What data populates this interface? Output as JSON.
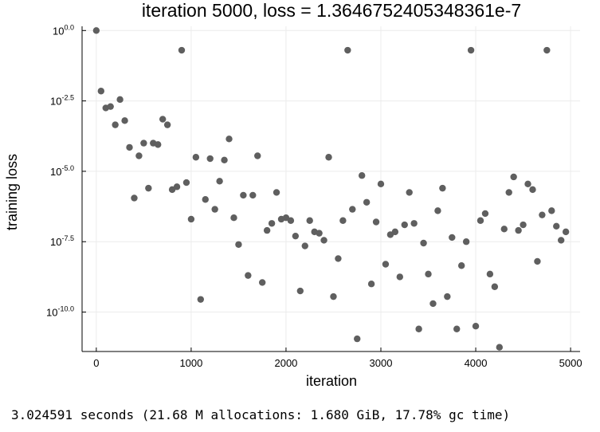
{
  "chart_data": {
    "type": "scatter",
    "title": "iteration 5000, loss = 1.3646752405348361e-7",
    "xlabel": "iteration",
    "ylabel": "training loss",
    "xlim": [
      -150,
      5100
    ],
    "xticks": [
      0,
      1000,
      2000,
      3000,
      4000,
      5000
    ],
    "y_scale": "log10",
    "ylim_log10": [
      -11.4,
      0.15
    ],
    "yticks_log10": [
      0.0,
      -2.5,
      -5.0,
      -7.5,
      -10.0
    ],
    "ytick_labels": [
      {
        "base": "10",
        "exp": "0.0"
      },
      {
        "base": "10",
        "exp": "-2.5"
      },
      {
        "base": "10",
        "exp": "-5.0"
      },
      {
        "base": "10",
        "exp": "-7.5"
      },
      {
        "base": "10",
        "exp": "-10.0"
      }
    ],
    "grid": true,
    "marker_color": "#5f5f5f",
    "series": [
      {
        "x": [
          0,
          50,
          100,
          150,
          200,
          250,
          300,
          350,
          400,
          450,
          500,
          550,
          600,
          650,
          700,
          750,
          800,
          850,
          900,
          950,
          1000,
          1050,
          1100,
          1150,
          1200,
          1250,
          1300,
          1350,
          1400,
          1450,
          1500,
          1550,
          1600,
          1650,
          1700,
          1750,
          1800,
          1850,
          1900,
          1950,
          2000,
          2050,
          2100,
          2150,
          2200,
          2250,
          2300,
          2350,
          2400,
          2450,
          2500,
          2550,
          2600,
          2650,
          2700,
          2750,
          2800,
          2850,
          2900,
          2950,
          3000,
          3050,
          3100,
          3150,
          3200,
          3250,
          3300,
          3350,
          3400,
          3450,
          3500,
          3550,
          3600,
          3650,
          3700,
          3750,
          3800,
          3850,
          3900,
          3950,
          4000,
          4050,
          4100,
          4150,
          4200,
          4250,
          4300,
          4350,
          4400,
          4450,
          4500,
          4550,
          4600,
          4650,
          4700,
          4750,
          4800,
          4850,
          4900,
          4950
        ],
        "y_log10": [
          0.0,
          -2.15,
          -2.75,
          -2.7,
          -3.35,
          -2.45,
          -3.2,
          -4.15,
          -5.95,
          -4.45,
          -4.0,
          -5.6,
          -4.0,
          -4.05,
          -3.15,
          -3.35,
          -5.65,
          -5.55,
          -0.7,
          -5.4,
          -6.7,
          -4.5,
          -9.55,
          -6.0,
          -4.55,
          -6.35,
          -5.35,
          -4.6,
          -3.85,
          -6.65,
          -7.6,
          -5.85,
          -8.7,
          -5.85,
          -4.45,
          -8.95,
          -7.1,
          -6.85,
          -5.75,
          -6.7,
          -6.65,
          -6.75,
          -7.3,
          -9.25,
          -7.65,
          -6.75,
          -7.15,
          -7.2,
          -7.45,
          -4.5,
          -9.45,
          -8.1,
          -6.75,
          -0.7,
          -6.35,
          -10.95,
          -5.15,
          -6.1,
          -9.0,
          -6.8,
          -5.45,
          -8.3,
          -7.25,
          -7.15,
          -8.75,
          -6.9,
          -5.75,
          -6.85,
          -10.6,
          -7.55,
          -8.65,
          -9.7,
          -6.4,
          -5.6,
          -9.45,
          -7.35,
          -10.6,
          -8.35,
          -7.5,
          -0.7,
          -10.5,
          -6.75,
          -6.5,
          -8.65,
          -9.1,
          -11.25,
          -7.05,
          -5.75,
          -5.2,
          -7.1,
          -6.9,
          -5.45,
          -5.65,
          -8.2,
          -6.55,
          -0.7,
          -6.4,
          -6.95,
          -7.45,
          -7.15
        ]
      }
    ]
  },
  "console_output": "3.024591 seconds (21.68 M allocations: 1.680 GiB, 17.78% gc time)"
}
